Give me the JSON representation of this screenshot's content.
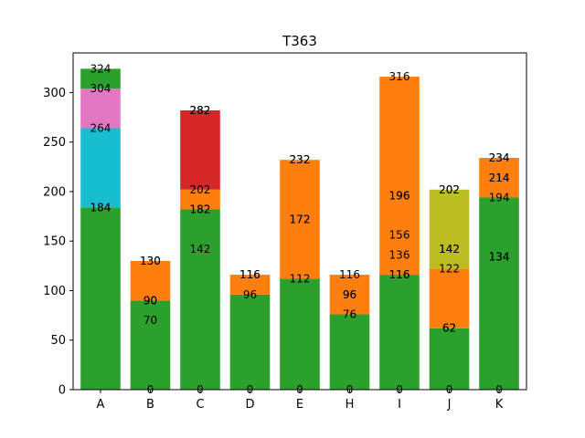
{
  "chart_data": {
    "type": "bar",
    "stacked": true,
    "title": "T363",
    "xlabel": "",
    "ylabel": "",
    "ylim": [
      0,
      340
    ],
    "yticks": [
      0,
      50,
      100,
      150,
      200,
      250,
      300
    ],
    "grid": false,
    "categories": [
      "A",
      "B",
      "C",
      "D",
      "E",
      "H",
      "I",
      "J",
      "K"
    ],
    "stacks": [
      [
        {
          "bottom": 0,
          "top": 184,
          "color": "#2ca02c"
        },
        {
          "bottom": 184,
          "top": 264,
          "color": "#17becf"
        },
        {
          "bottom": 264,
          "top": 304,
          "color": "#e377c2"
        },
        {
          "bottom": 304,
          "top": 324,
          "color": "#2ca02c"
        }
      ],
      [
        {
          "bottom": 0,
          "top": 90,
          "color": "#2ca02c"
        },
        {
          "bottom": 90,
          "top": 130,
          "color": "#ff7f0e"
        }
      ],
      [
        {
          "bottom": 0,
          "top": 182,
          "color": "#2ca02c"
        },
        {
          "bottom": 182,
          "top": 202,
          "color": "#ff7f0e"
        },
        {
          "bottom": 202,
          "top": 282,
          "color": "#d62728"
        }
      ],
      [
        {
          "bottom": 0,
          "top": 96,
          "color": "#2ca02c"
        },
        {
          "bottom": 96,
          "top": 116,
          "color": "#ff7f0e"
        }
      ],
      [
        {
          "bottom": 0,
          "top": 112,
          "color": "#2ca02c"
        },
        {
          "bottom": 112,
          "top": 232,
          "color": "#ff7f0e"
        }
      ],
      [
        {
          "bottom": 0,
          "top": 76,
          "color": "#2ca02c"
        },
        {
          "bottom": 76,
          "top": 116,
          "color": "#ff7f0e"
        }
      ],
      [
        {
          "bottom": 0,
          "top": 116,
          "color": "#2ca02c"
        },
        {
          "bottom": 116,
          "top": 316,
          "color": "#ff7f0e"
        }
      ],
      [
        {
          "bottom": 0,
          "top": 62,
          "color": "#2ca02c"
        },
        {
          "bottom": 62,
          "top": 122,
          "color": "#ff7f0e"
        },
        {
          "bottom": 122,
          "top": 202,
          "color": "#bcbd22"
        }
      ],
      [
        {
          "bottom": 0,
          "top": 194,
          "color": "#2ca02c"
        },
        {
          "bottom": 194,
          "top": 234,
          "color": "#ff7f0e"
        }
      ]
    ],
    "data_labels": [
      [
        "324",
        "304",
        "264",
        "184",
        "184"
      ],
      [
        "130",
        "130",
        "90",
        "90",
        "70",
        "0"
      ],
      [
        "282",
        "282",
        "202",
        "182",
        "182",
        "142",
        "0"
      ],
      [
        "116",
        "116",
        "96",
        "0"
      ],
      [
        "232",
        "232",
        "172",
        "172",
        "112",
        "0"
      ],
      [
        "116",
        "96",
        "96",
        "76",
        "0"
      ],
      [
        "316",
        "196",
        "196",
        "156",
        "136",
        "116",
        "116",
        "0"
      ],
      [
        "202",
        "202",
        "142",
        "142",
        "122",
        "62",
        "62",
        "0"
      ],
      [
        "234",
        "234",
        "214",
        "214",
        "194",
        "134",
        "134",
        "0"
      ]
    ],
    "data_label_values": [
      [
        324,
        304,
        264,
        184,
        184
      ],
      [
        130,
        130,
        90,
        90,
        70,
        0
      ],
      [
        282,
        282,
        202,
        182,
        182,
        142,
        0
      ],
      [
        116,
        116,
        96,
        0
      ],
      [
        232,
        232,
        172,
        172,
        112,
        0
      ],
      [
        116,
        96,
        96,
        76,
        0
      ],
      [
        316,
        196,
        196,
        156,
        136,
        116,
        116,
        0
      ],
      [
        202,
        202,
        142,
        142,
        122,
        62,
        62,
        0
      ],
      [
        234,
        234,
        214,
        214,
        194,
        134,
        134,
        0
      ]
    ]
  }
}
